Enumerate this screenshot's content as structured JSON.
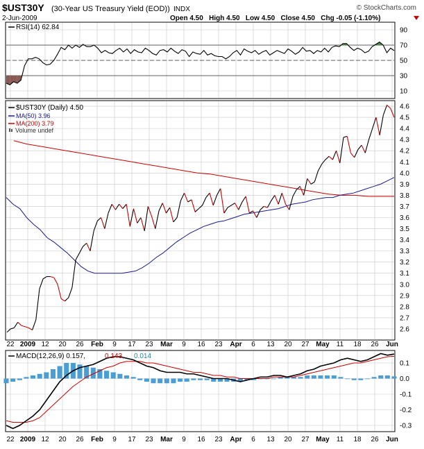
{
  "header": {
    "symbol": "$UST30Y",
    "description": "(30-Year US Treasury Yield (EOD))",
    "exchange": "INDX",
    "copyright": "© StockCharts.com",
    "date": "2-Jun-2009",
    "quote": "Open 4.50   High 4.50   Low 4.50   Close 4.50   Chg -0.05 (-1.10%)",
    "trend_icon": "down-triangle"
  },
  "colors": {
    "background": "#ffffff",
    "panel_border": "#000000",
    "grid": "#c8c8c8",
    "price": "#000000",
    "rsi": "#000000",
    "rsi_overbought_fill": "#4a8a4a",
    "rsi_oversold_fill": "#8a5a52",
    "ma50": "#1a1a8c",
    "ma200": "#cc0000",
    "down_segment": "#cc0000",
    "macd_line": "#000000",
    "macd_signal": "#cc0000",
    "macd_histogram": "#4a9ed4",
    "macd_hist_label": "#2a8aa8",
    "volume_label": "#333333"
  },
  "chart_data": [
    {
      "type": "line",
      "panel": "rsi",
      "legend": "RSI(14) 62.84",
      "ylim": [
        0,
        100
      ],
      "yticks": [
        10,
        30,
        50,
        70,
        90
      ],
      "reference_lines": [
        30,
        50,
        70
      ],
      "x": [
        0,
        1,
        2,
        3,
        4,
        5,
        6,
        7,
        8,
        9,
        10,
        11,
        12,
        13,
        14,
        15,
        16,
        17,
        18,
        19,
        20,
        21,
        22,
        23,
        24,
        25,
        26,
        27,
        28,
        29,
        30,
        31,
        32,
        33,
        34,
        35,
        36,
        37,
        38,
        39,
        40,
        41,
        42,
        43,
        44,
        45,
        46,
        47,
        48,
        49,
        50,
        51,
        52,
        53,
        54,
        55,
        56,
        57,
        58,
        59,
        60,
        61,
        62,
        63,
        64,
        65,
        66,
        67,
        68,
        69,
        70,
        71,
        72,
        73,
        74,
        75,
        76,
        77,
        78,
        79,
        80,
        81,
        82,
        83,
        84,
        85,
        86,
        87,
        88,
        89,
        90,
        91,
        92,
        93,
        94,
        95,
        96,
        97,
        98,
        99,
        100,
        101,
        102,
        103,
        104,
        105,
        106
      ],
      "values": [
        20,
        18,
        22,
        20,
        24,
        43,
        52,
        52,
        54,
        52,
        47,
        44,
        45,
        50,
        58,
        67,
        64,
        70,
        66,
        70,
        67,
        71,
        68,
        68,
        70,
        66,
        60,
        63,
        60,
        59,
        63,
        66,
        61,
        65,
        59,
        64,
        61,
        60,
        66,
        63,
        59,
        57,
        63,
        64,
        61,
        66,
        62,
        59,
        64,
        62,
        55,
        61,
        59,
        58,
        63,
        57,
        59,
        56,
        55,
        55,
        52,
        55,
        60,
        63,
        57,
        65,
        62,
        60,
        63,
        58,
        61,
        63,
        57,
        60,
        63,
        61,
        59,
        65,
        62,
        58,
        61,
        67,
        62,
        63,
        59,
        63,
        61,
        66,
        61,
        67,
        69,
        68,
        72,
        72,
        67,
        63,
        66,
        64,
        60,
        62,
        68,
        71,
        74,
        70,
        60,
        66,
        62.84
      ]
    },
    {
      "type": "line",
      "panel": "price",
      "legend": [
        "$UST30Y (Daily) 4.50",
        "MA(50) 3.96",
        "MA(200) 3.79",
        "Volume undef"
      ],
      "ylim": [
        2.5,
        4.65
      ],
      "yticks": [
        2.6,
        2.7,
        2.8,
        2.9,
        3.0,
        3.1,
        3.2,
        3.3,
        3.4,
        3.5,
        3.6,
        3.7,
        3.8,
        3.9,
        4.0,
        4.1,
        4.2,
        4.3,
        4.4,
        4.5,
        4.6
      ],
      "series": [
        {
          "name": "$UST30Y (Daily)",
          "values": [
            2.57,
            2.6,
            2.61,
            2.66,
            2.63,
            2.62,
            2.61,
            2.59,
            2.68,
            2.96,
            3.05,
            3.07,
            3.07,
            3.06,
            3.0,
            2.87,
            2.85,
            2.88,
            2.97,
            3.22,
            3.28,
            3.34,
            3.37,
            3.3,
            3.48,
            3.57,
            3.6,
            3.5,
            3.64,
            3.72,
            3.67,
            3.72,
            3.68,
            3.72,
            3.52,
            3.68,
            3.55,
            3.6,
            3.48,
            3.7,
            3.61,
            3.5,
            3.66,
            3.73,
            3.64,
            3.69,
            3.56,
            3.6,
            3.75,
            3.82,
            3.74,
            3.76,
            3.65,
            3.68,
            3.71,
            3.78,
            3.82,
            3.71,
            3.8,
            3.86,
            3.64,
            3.69,
            3.71,
            3.73,
            3.67,
            3.74,
            3.79,
            3.64,
            3.66,
            3.6,
            3.67,
            3.7,
            3.69,
            3.75,
            3.8,
            3.72,
            3.82,
            3.72,
            3.67,
            3.79,
            3.85,
            3.88,
            3.8,
            3.95,
            3.9,
            3.92,
            4.02,
            4.08,
            4.12,
            4.15,
            4.12,
            4.2,
            4.09,
            4.32,
            4.33,
            4.18,
            4.14,
            4.21,
            4.25,
            4.18,
            4.3,
            4.4,
            4.5,
            4.34,
            4.52,
            4.61,
            4.58,
            4.5
          ]
        },
        {
          "name": "MA(50)",
          "values": [
            3.78,
            3.72,
            3.68,
            3.6,
            3.54,
            3.49,
            3.42,
            3.38,
            3.33,
            3.28,
            3.22,
            3.16,
            3.12,
            3.1,
            3.1,
            3.1,
            3.1,
            3.1,
            3.11,
            3.12,
            3.15,
            3.19,
            3.24,
            3.28,
            3.33,
            3.38,
            3.42,
            3.46,
            3.49,
            3.52,
            3.54,
            3.56,
            3.57,
            3.59,
            3.61,
            3.63,
            3.64,
            3.65,
            3.66,
            3.67,
            3.68,
            3.7,
            3.72,
            3.73,
            3.74,
            3.76,
            3.77,
            3.78,
            3.78,
            3.8,
            3.81,
            3.82,
            3.84,
            3.86,
            3.88,
            3.9,
            3.93,
            3.96
          ]
        },
        {
          "name": "MA(200)",
          "values": [
            4.29,
            4.26,
            4.24,
            4.22,
            4.2,
            4.18,
            4.16,
            4.14,
            4.12,
            4.1,
            4.08,
            4.06,
            4.04,
            4.02,
            4.0,
            3.99,
            3.97,
            3.95,
            3.93,
            3.91,
            3.89,
            3.87,
            3.85,
            3.83,
            3.81,
            3.8,
            3.8,
            3.79,
            3.79,
            3.79
          ]
        }
      ]
    },
    {
      "type": "line",
      "panel": "macd",
      "legend": [
        "MACD(12,26,9) 0.157,",
        "0.143,",
        "0.014"
      ],
      "ylim": [
        -0.34,
        0.18
      ],
      "yticks": [
        -0.3,
        -0.2,
        -0.1,
        0.0,
        0.1
      ],
      "series": [
        {
          "name": "MACD",
          "values": [
            -0.3,
            -0.32,
            -0.3,
            -0.27,
            -0.24,
            -0.2,
            -0.14,
            -0.08,
            -0.02,
            0.02,
            0.05,
            0.07,
            0.08,
            0.09,
            0.11,
            0.13,
            0.14,
            0.14,
            0.13,
            0.12,
            0.1,
            0.08,
            0.07,
            0.05,
            0.04,
            0.04,
            0.04,
            0.03,
            0.03,
            0.02,
            0.01,
            0.0,
            0.0,
            0.0,
            -0.01,
            -0.02,
            -0.01,
            0.0,
            0.01,
            0.01,
            0.02,
            0.02,
            0.01,
            0.02,
            0.03,
            0.05,
            0.06,
            0.08,
            0.09,
            0.1,
            0.12,
            0.13,
            0.12,
            0.11,
            0.12,
            0.14,
            0.16,
            0.15,
            0.157
          ]
        },
        {
          "name": "Signal",
          "values": [
            -0.27,
            -0.28,
            -0.28,
            -0.28,
            -0.27,
            -0.25,
            -0.21,
            -0.17,
            -0.13,
            -0.09,
            -0.05,
            -0.02,
            0.01,
            0.03,
            0.05,
            0.07,
            0.08,
            0.1,
            0.11,
            0.11,
            0.11,
            0.1,
            0.1,
            0.09,
            0.08,
            0.07,
            0.06,
            0.05,
            0.04,
            0.04,
            0.03,
            0.02,
            0.02,
            0.01,
            0.01,
            0.0,
            0.0,
            0.0,
            0.0,
            0.0,
            0.01,
            0.01,
            0.01,
            0.01,
            0.02,
            0.03,
            0.04,
            0.05,
            0.06,
            0.07,
            0.08,
            0.09,
            0.1,
            0.1,
            0.11,
            0.12,
            0.13,
            0.14,
            0.143
          ]
        },
        {
          "name": "Histogram",
          "values": [
            -0.03,
            -0.02,
            -0.01,
            0.01,
            0.02,
            0.03,
            0.04,
            0.06,
            0.08,
            0.1,
            0.1,
            0.09,
            0.08,
            0.07,
            0.06,
            0.05,
            0.04,
            0.03,
            0.02,
            0.01,
            -0.01,
            -0.02,
            -0.03,
            -0.03,
            -0.03,
            -0.03,
            -0.02,
            -0.02,
            -0.01,
            -0.01,
            -0.01,
            -0.02,
            -0.02,
            -0.02,
            -0.02,
            -0.02,
            -0.01,
            -0.01,
            0.0,
            0.0,
            0.0,
            0.01,
            0.01,
            0.01,
            0.01,
            0.02,
            0.02,
            0.02,
            0.02,
            0.02,
            0.01,
            0.0,
            -0.01,
            -0.01,
            0.0,
            0.01,
            0.02,
            0.02,
            0.014
          ]
        }
      ]
    }
  ],
  "x_axis": {
    "labels": [
      "22",
      "2009",
      "12",
      "20",
      "26",
      "Feb",
      "9",
      "17",
      "23",
      "Mar",
      "9",
      "16",
      "23",
      "Apr",
      "6",
      "13",
      "20",
      "27",
      "May",
      "11",
      "18",
      "26",
      "Jun"
    ],
    "bold_labels": [
      "2009",
      "Feb",
      "Mar",
      "Apr",
      "May",
      "Jun"
    ]
  }
}
